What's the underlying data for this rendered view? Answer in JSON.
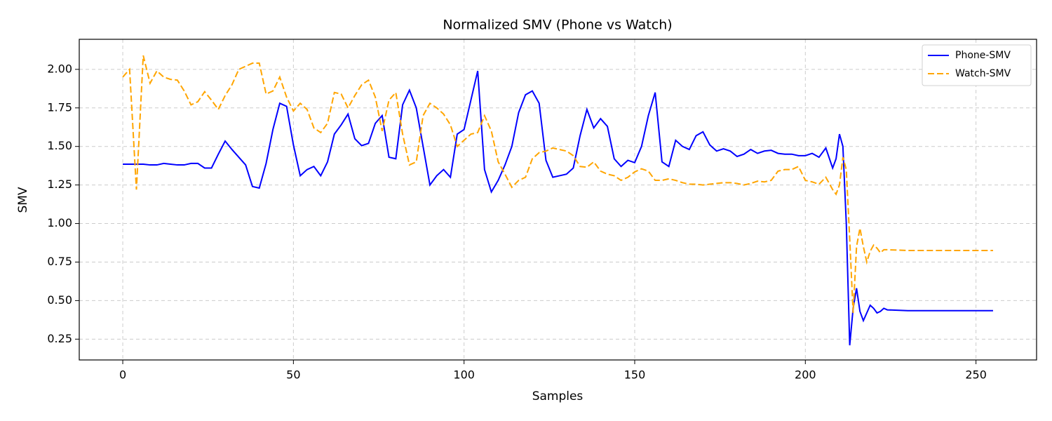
{
  "chart_data": {
    "type": "line",
    "title": "Normalized SMV (Phone vs Watch)",
    "xlabel": "Samples",
    "ylabel": "SMV",
    "x": [
      0,
      2,
      4,
      6,
      8,
      10,
      12,
      14,
      16,
      18,
      20,
      22,
      24,
      26,
      28,
      30,
      32,
      34,
      36,
      38,
      40,
      42,
      44,
      46,
      48,
      50,
      52,
      54,
      56,
      58,
      60,
      62,
      64,
      66,
      68,
      70,
      72,
      74,
      76,
      78,
      80,
      82,
      84,
      86,
      88,
      90,
      92,
      94,
      96,
      98,
      100,
      102,
      104,
      106,
      108,
      110,
      112,
      114,
      116,
      118,
      120,
      122,
      124,
      126,
      128,
      130,
      132,
      134,
      136,
      138,
      140,
      142,
      144,
      146,
      148,
      150,
      152,
      154,
      156,
      158,
      160,
      162,
      164,
      166,
      168,
      170,
      172,
      174,
      176,
      178,
      180,
      182,
      184,
      186,
      188,
      190,
      192,
      194,
      196,
      198,
      200,
      202,
      204,
      206,
      208,
      209,
      210,
      211,
      212,
      213,
      214,
      215,
      216,
      217,
      218,
      219,
      220,
      221,
      222,
      223,
      224,
      230,
      235,
      240,
      245,
      250,
      255
    ],
    "series": [
      {
        "name": "Phone-SMV",
        "color": "#0000ff",
        "linestyle": "solid",
        "values": [
          1.385,
          1.385,
          1.385,
          1.385,
          1.38,
          1.38,
          1.39,
          1.385,
          1.38,
          1.38,
          1.39,
          1.39,
          1.36,
          1.36,
          1.45,
          1.535,
          1.48,
          1.43,
          1.38,
          1.24,
          1.23,
          1.39,
          1.61,
          1.78,
          1.76,
          1.51,
          1.31,
          1.35,
          1.37,
          1.31,
          1.4,
          1.58,
          1.64,
          1.71,
          1.55,
          1.505,
          1.52,
          1.65,
          1.7,
          1.43,
          1.42,
          1.77,
          1.865,
          1.75,
          1.5,
          1.25,
          1.31,
          1.35,
          1.3,
          1.58,
          1.61,
          1.8,
          1.99,
          1.35,
          1.205,
          1.28,
          1.38,
          1.5,
          1.72,
          1.835,
          1.86,
          1.78,
          1.41,
          1.3,
          1.31,
          1.32,
          1.36,
          1.57,
          1.74,
          1.62,
          1.68,
          1.63,
          1.42,
          1.37,
          1.41,
          1.395,
          1.5,
          1.7,
          1.85,
          1.4,
          1.37,
          1.54,
          1.5,
          1.48,
          1.57,
          1.595,
          1.51,
          1.47,
          1.485,
          1.47,
          1.435,
          1.45,
          1.48,
          1.455,
          1.47,
          1.475,
          1.455,
          1.45,
          1.45,
          1.44,
          1.44,
          1.455,
          1.43,
          1.49,
          1.36,
          1.42,
          1.58,
          1.5,
          1.0,
          0.21,
          0.45,
          0.58,
          0.43,
          0.37,
          0.42,
          0.47,
          0.45,
          0.42,
          0.43,
          0.45,
          0.44,
          0.435,
          0.435,
          0.435,
          0.435,
          0.435,
          0.435
        ]
      },
      {
        "name": "Watch-SMV",
        "color": "#ffa500",
        "linestyle": "dashed",
        "values": [
          1.95,
          2.0,
          1.22,
          2.09,
          1.91,
          1.99,
          1.95,
          1.935,
          1.93,
          1.86,
          1.77,
          1.79,
          1.855,
          1.8,
          1.74,
          1.83,
          1.9,
          2.0,
          2.02,
          2.04,
          2.04,
          1.84,
          1.86,
          1.95,
          1.82,
          1.73,
          1.78,
          1.74,
          1.62,
          1.59,
          1.65,
          1.85,
          1.84,
          1.75,
          1.83,
          1.9,
          1.93,
          1.82,
          1.6,
          1.8,
          1.85,
          1.58,
          1.38,
          1.4,
          1.7,
          1.78,
          1.75,
          1.71,
          1.64,
          1.5,
          1.54,
          1.58,
          1.59,
          1.7,
          1.6,
          1.4,
          1.32,
          1.235,
          1.28,
          1.3,
          1.42,
          1.46,
          1.47,
          1.49,
          1.48,
          1.47,
          1.44,
          1.37,
          1.365,
          1.4,
          1.34,
          1.32,
          1.31,
          1.28,
          1.3,
          1.335,
          1.355,
          1.34,
          1.28,
          1.28,
          1.29,
          1.28,
          1.265,
          1.255,
          1.255,
          1.25,
          1.255,
          1.26,
          1.265,
          1.265,
          1.26,
          1.25,
          1.26,
          1.275,
          1.27,
          1.28,
          1.34,
          1.35,
          1.35,
          1.37,
          1.28,
          1.27,
          1.255,
          1.3,
          1.22,
          1.19,
          1.25,
          1.43,
          1.35,
          0.9,
          0.42,
          0.85,
          0.97,
          0.85,
          0.75,
          0.82,
          0.86,
          0.84,
          0.81,
          0.83,
          0.83,
          0.825,
          0.825,
          0.825,
          0.825,
          0.825,
          0.825
        ]
      }
    ],
    "xlim": [
      -12.75,
      267.75
    ],
    "ylim": [
      0.115,
      2.195
    ],
    "xticks": [
      0,
      50,
      100,
      150,
      200,
      250
    ],
    "yticks": [
      0.25,
      {
        "value": 0.5,
        "label": "0.50"
      },
      0.75,
      {
        "value": 1,
        "label": "1.00"
      },
      1.25,
      {
        "value": 1.5,
        "label": "1.50"
      },
      1.75,
      {
        "value": 2,
        "label": "2.00"
      }
    ],
    "grid": true,
    "legend": "upper-right"
  }
}
